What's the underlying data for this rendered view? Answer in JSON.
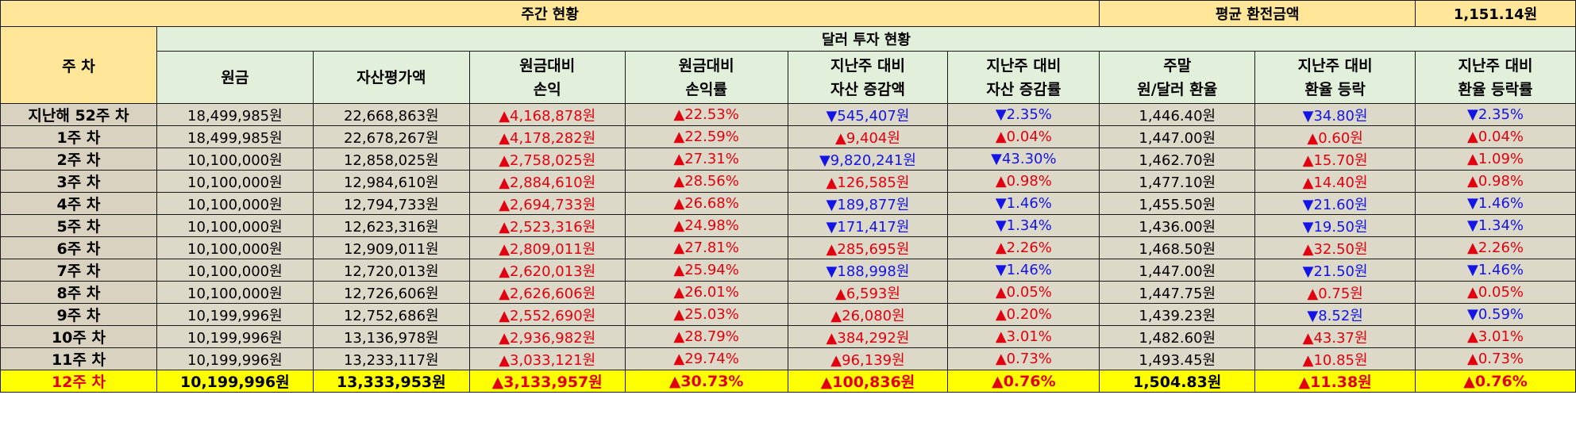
{
  "header": {
    "weekly_status": "주간 현황",
    "avg_rate_label": "평균 환전금액",
    "avg_rate_value": "1,151.14원",
    "dollar_invest": "달러 투자 현황",
    "week_col": "주 차"
  },
  "columns": [
    [
      "원금"
    ],
    [
      "자산평가액"
    ],
    [
      "원금대비",
      "손익"
    ],
    [
      "원금대비",
      "손익률"
    ],
    [
      "지난주 대비",
      "자산 증감액"
    ],
    [
      "지난주 대비",
      "자산 증감률"
    ],
    [
      "주말",
      "원/달러 환율"
    ],
    [
      "지난주 대비",
      "환율 등락"
    ],
    [
      "지난주 대비",
      "환율 등락률"
    ]
  ],
  "rows": [
    {
      "week": "지난해 52주 차",
      "principal": "18,499,985원",
      "asset": "22,668,863원",
      "pl": "▲4,168,878원",
      "pl_dir": "up",
      "plr": "▲22.53%",
      "plr_dir": "up",
      "chg": "▼545,407원",
      "chg_dir": "down",
      "chgr": "▼2.35%",
      "chgr_dir": "down",
      "fx": "1,446.40원",
      "fxc": "▼34.80원",
      "fxc_dir": "down",
      "fxr": "▼2.35%",
      "fxr_dir": "down"
    },
    {
      "week": "1주 차",
      "principal": "18,499,985원",
      "asset": "22,678,267원",
      "pl": "▲4,178,282원",
      "pl_dir": "up",
      "plr": "▲22.59%",
      "plr_dir": "up",
      "chg": "▲9,404원",
      "chg_dir": "up",
      "chgr": "▲0.04%",
      "chgr_dir": "up",
      "fx": "1,447.00원",
      "fxc": "▲0.60원",
      "fxc_dir": "up",
      "fxr": "▲0.04%",
      "fxr_dir": "up"
    },
    {
      "week": "2주 차",
      "principal": "10,100,000원",
      "asset": "12,858,025원",
      "pl": "▲2,758,025원",
      "pl_dir": "up",
      "plr": "▲27.31%",
      "plr_dir": "up",
      "chg": "▼9,820,241원",
      "chg_dir": "down",
      "chgr": "▼43.30%",
      "chgr_dir": "down",
      "fx": "1,462.70원",
      "fxc": "▲15.70원",
      "fxc_dir": "up",
      "fxr": "▲1.09%",
      "fxr_dir": "up"
    },
    {
      "week": "3주 차",
      "principal": "10,100,000원",
      "asset": "12,984,610원",
      "pl": "▲2,884,610원",
      "pl_dir": "up",
      "plr": "▲28.56%",
      "plr_dir": "up",
      "chg": "▲126,585원",
      "chg_dir": "up",
      "chgr": "▲0.98%",
      "chgr_dir": "up",
      "fx": "1,477.10원",
      "fxc": "▲14.40원",
      "fxc_dir": "up",
      "fxr": "▲0.98%",
      "fxr_dir": "up"
    },
    {
      "week": "4주 차",
      "principal": "10,100,000원",
      "asset": "12,794,733원",
      "pl": "▲2,694,733원",
      "pl_dir": "up",
      "plr": "▲26.68%",
      "plr_dir": "up",
      "chg": "▼189,877원",
      "chg_dir": "down",
      "chgr": "▼1.46%",
      "chgr_dir": "down",
      "fx": "1,455.50원",
      "fxc": "▼21.60원",
      "fxc_dir": "down",
      "fxr": "▼1.46%",
      "fxr_dir": "down"
    },
    {
      "week": "5주 차",
      "principal": "10,100,000원",
      "asset": "12,623,316원",
      "pl": "▲2,523,316원",
      "pl_dir": "up",
      "plr": "▲24.98%",
      "plr_dir": "up",
      "chg": "▼171,417원",
      "chg_dir": "down",
      "chgr": "▼1.34%",
      "chgr_dir": "down",
      "fx": "1,436.00원",
      "fxc": "▼19.50원",
      "fxc_dir": "down",
      "fxr": "▼1.34%",
      "fxr_dir": "down"
    },
    {
      "week": "6주 차",
      "principal": "10,100,000원",
      "asset": "12,909,011원",
      "pl": "▲2,809,011원",
      "pl_dir": "up",
      "plr": "▲27.81%",
      "plr_dir": "up",
      "chg": "▲285,695원",
      "chg_dir": "up",
      "chgr": "▲2.26%",
      "chgr_dir": "up",
      "fx": "1,468.50원",
      "fxc": "▲32.50원",
      "fxc_dir": "up",
      "fxr": "▲2.26%",
      "fxr_dir": "up"
    },
    {
      "week": "7주 차",
      "principal": "10,100,000원",
      "asset": "12,720,013원",
      "pl": "▲2,620,013원",
      "pl_dir": "up",
      "plr": "▲25.94%",
      "plr_dir": "up",
      "chg": "▼188,998원",
      "chg_dir": "down",
      "chgr": "▼1.46%",
      "chgr_dir": "down",
      "fx": "1,447.00원",
      "fxc": "▼21.50원",
      "fxc_dir": "down",
      "fxr": "▼1.46%",
      "fxr_dir": "down"
    },
    {
      "week": "8주 차",
      "principal": "10,100,000원",
      "asset": "12,726,606원",
      "pl": "▲2,626,606원",
      "pl_dir": "up",
      "plr": "▲26.01%",
      "plr_dir": "up",
      "chg": "▲6,593원",
      "chg_dir": "up",
      "chgr": "▲0.05%",
      "chgr_dir": "up",
      "fx": "1,447.75원",
      "fxc": "▲0.75원",
      "fxc_dir": "up",
      "fxr": "▲0.05%",
      "fxr_dir": "up"
    },
    {
      "week": "9주 차",
      "principal": "10,199,996원",
      "asset": "12,752,686원",
      "pl": "▲2,552,690원",
      "pl_dir": "up",
      "plr": "▲25.03%",
      "plr_dir": "up",
      "chg": "▲26,080원",
      "chg_dir": "up",
      "chgr": "▲0.20%",
      "chgr_dir": "up",
      "fx": "1,439.23원",
      "fxc": "▼8.52원",
      "fxc_dir": "down",
      "fxr": "▼0.59%",
      "fxr_dir": "down"
    },
    {
      "week": "10주 차",
      "principal": "10,199,996원",
      "asset": "13,136,978원",
      "pl": "▲2,936,982원",
      "pl_dir": "up",
      "plr": "▲28.79%",
      "plr_dir": "up",
      "chg": "▲384,292원",
      "chg_dir": "up",
      "chgr": "▲3.01%",
      "chgr_dir": "up",
      "fx": "1,482.60원",
      "fxc": "▲43.37원",
      "fxc_dir": "up",
      "fxr": "▲3.01%",
      "fxr_dir": "up"
    },
    {
      "week": "11주 차",
      "principal": "10,199,996원",
      "asset": "13,233,117원",
      "pl": "▲3,033,121원",
      "pl_dir": "up",
      "plr": "▲29.74%",
      "plr_dir": "up",
      "chg": "▲96,139원",
      "chg_dir": "up",
      "chgr": "▲0.73%",
      "chgr_dir": "up",
      "fx": "1,493.45원",
      "fxc": "▲10.85원",
      "fxc_dir": "up",
      "fxr": "▲0.73%",
      "fxr_dir": "up"
    },
    {
      "week": "12주 차",
      "principal": "10,199,996원",
      "asset": "13,333,953원",
      "pl": "▲3,133,957원",
      "pl_dir": "up",
      "plr": "▲30.73%",
      "plr_dir": "up",
      "chg": "▲100,836원",
      "chg_dir": "up",
      "chgr": "▲0.76%",
      "chgr_dir": "up",
      "fx": "1,504.83원",
      "fxc": "▲11.38원",
      "fxc_dir": "up",
      "fxr": "▲0.76%",
      "fxr_dir": "up"
    }
  ]
}
